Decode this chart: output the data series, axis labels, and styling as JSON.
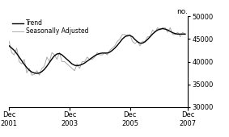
{
  "ylabel": "no.",
  "ylim": [
    30000,
    50000
  ],
  "yticks": [
    30000,
    35000,
    40000,
    45000,
    50000
  ],
  "xlim": [
    0,
    71
  ],
  "xtick_positions": [
    0,
    24,
    48,
    71
  ],
  "xtick_labels": [
    "Dec\n2001",
    "Dec\n2003",
    "Dec\n2005",
    "Dec\n2007"
  ],
  "legend_trend": "Trend",
  "legend_seasonal": "Seasonally Adjusted",
  "trend_color": "#000000",
  "seasonal_color": "#aaaaaa",
  "background_color": "#ffffff",
  "trend_data": [
    43500,
    43000,
    42500,
    41800,
    41000,
    40200,
    39400,
    38700,
    38100,
    37700,
    37500,
    37400,
    37500,
    37800,
    38300,
    39000,
    39800,
    40600,
    41300,
    41700,
    41800,
    41500,
    41000,
    40500,
    40000,
    39500,
    39200,
    39100,
    39200,
    39400,
    39700,
    40100,
    40500,
    40900,
    41300,
    41600,
    41800,
    41900,
    41900,
    41900,
    42100,
    42500,
    43000,
    43600,
    44300,
    45000,
    45500,
    45800,
    45800,
    45500,
    44900,
    44400,
    44100,
    44100,
    44400,
    44900,
    45500,
    46100,
    46600,
    47000,
    47200,
    47300,
    47200,
    47000,
    46700,
    46400,
    46200,
    46100,
    46100,
    46100,
    46100
  ],
  "seasonal_data": [
    44500,
    42000,
    41500,
    43000,
    40000,
    39500,
    40500,
    37500,
    38500,
    37000,
    37200,
    38000,
    37000,
    38500,
    39000,
    41000,
    40000,
    42000,
    41500,
    40500,
    42000,
    40000,
    40000,
    39500,
    39000,
    38500,
    38000,
    39500,
    38500,
    40000,
    40000,
    41000,
    40500,
    40500,
    41000,
    42000,
    41500,
    41500,
    42000,
    41500,
    42500,
    43000,
    43500,
    44500,
    45000,
    46000,
    46000,
    45500,
    46000,
    44500,
    44000,
    44500,
    43500,
    44500,
    44500,
    45500,
    45500,
    47000,
    46500,
    47500,
    47000,
    47500,
    47500,
    46500,
    47500,
    46000,
    46000,
    46500,
    45500,
    46500,
    46000
  ]
}
